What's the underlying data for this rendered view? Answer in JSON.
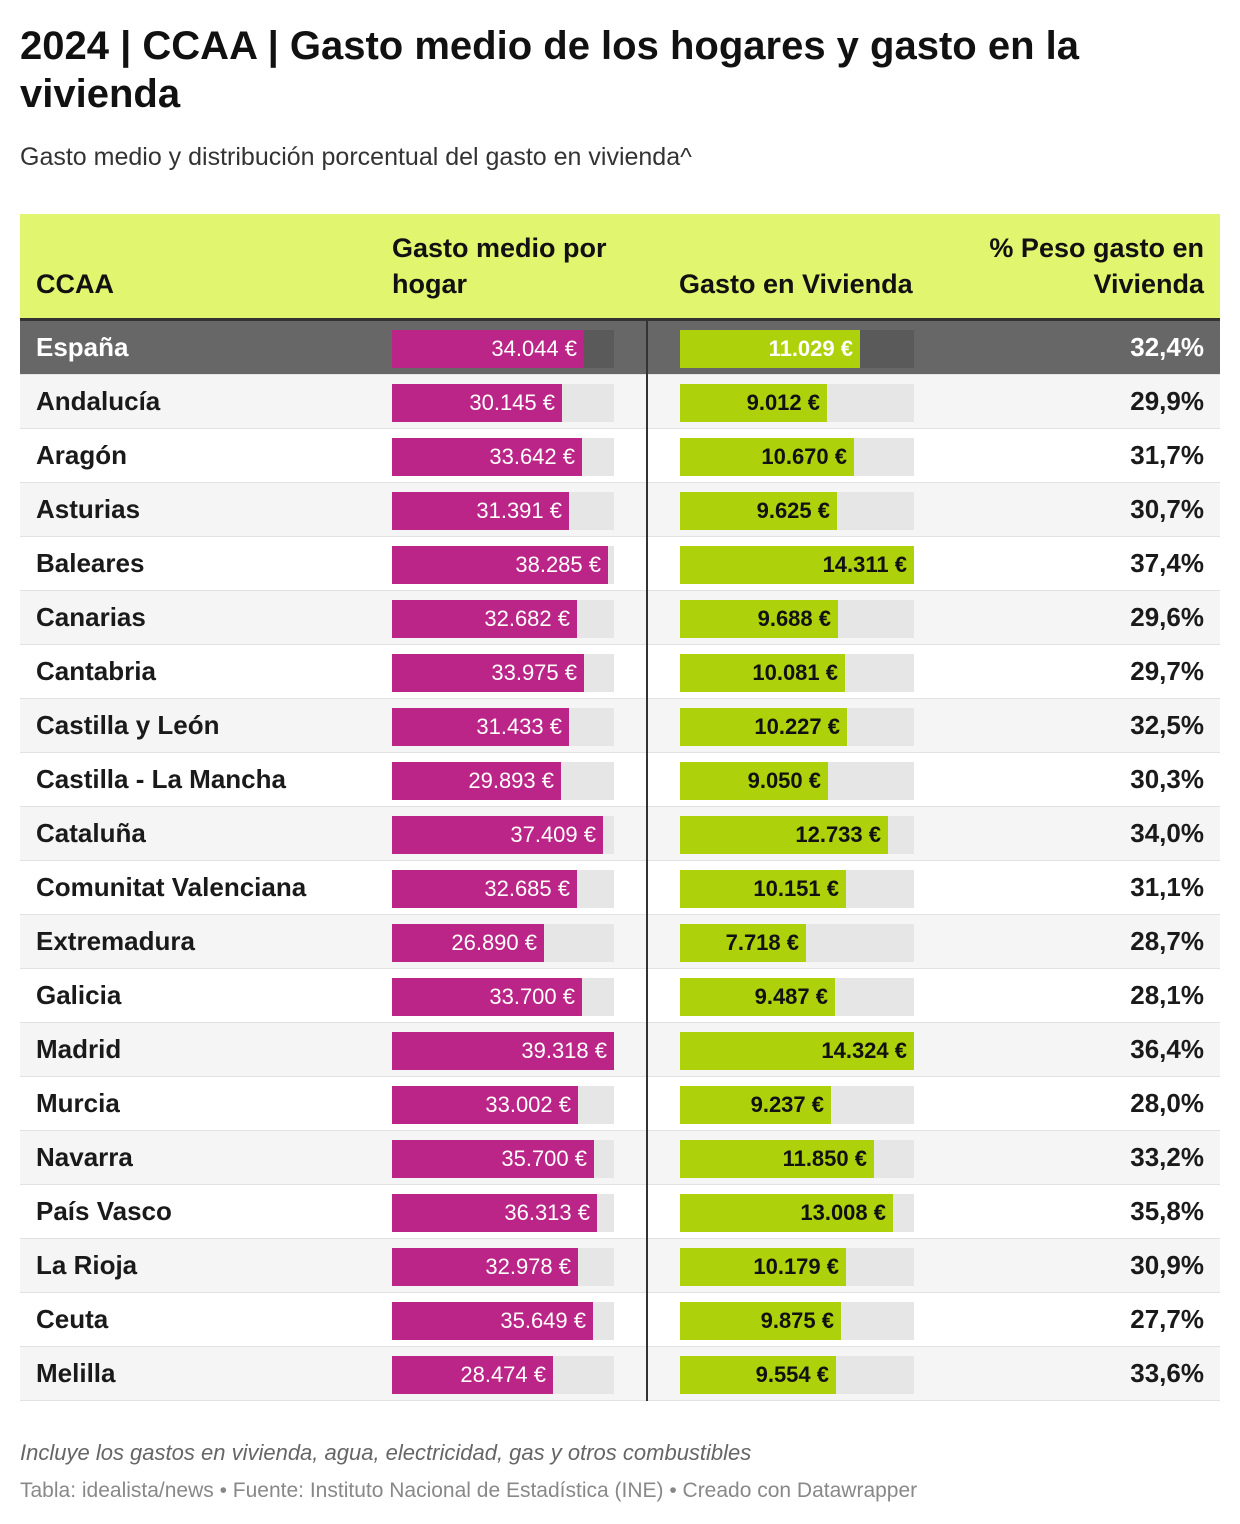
{
  "title": "2024 | CCAA | Gasto medio de los hogares y gasto en la vivienda",
  "subtitle": "Gasto medio y distribución porcentual del gasto en vivienda^",
  "footer": {
    "note": "Incluye los gastos en vivienda, agua, electricidad, gas y otros combustibles",
    "source": "Tabla: idealista/news • Fuente: Instituto Nacional de Estadística (INE) • Creado con Datawrapper"
  },
  "colors": {
    "header_bg": "#e1f56f",
    "gasto_bar": "#bb2587",
    "vivienda_bar": "#add10a",
    "highlight_row": "#676767"
  },
  "chart_data": {
    "type": "table",
    "columns": [
      "CCAA",
      "Gasto medio por hogar",
      "Gasto en Vivienda",
      "% Peso gasto en Vivienda"
    ],
    "gasto_max": 39318,
    "vivienda_max": 14324,
    "rows": [
      {
        "ccaa": "España",
        "gasto": 34044,
        "gasto_label": "34.044 €",
        "vivienda": 11029,
        "vivienda_label": "11.029 €",
        "peso": "32,4%",
        "highlight": true
      },
      {
        "ccaa": "Andalucía",
        "gasto": 30145,
        "gasto_label": "30.145 €",
        "vivienda": 9012,
        "vivienda_label": "9.012 €",
        "peso": "29,9%"
      },
      {
        "ccaa": "Aragón",
        "gasto": 33642,
        "gasto_label": "33.642 €",
        "vivienda": 10670,
        "vivienda_label": "10.670 €",
        "peso": "31,7%"
      },
      {
        "ccaa": "Asturias",
        "gasto": 31391,
        "gasto_label": "31.391 €",
        "vivienda": 9625,
        "vivienda_label": "9.625 €",
        "peso": "30,7%"
      },
      {
        "ccaa": "Baleares",
        "gasto": 38285,
        "gasto_label": "38.285 €",
        "vivienda": 14311,
        "vivienda_label": "14.311 €",
        "peso": "37,4%"
      },
      {
        "ccaa": "Canarias",
        "gasto": 32682,
        "gasto_label": "32.682 €",
        "vivienda": 9688,
        "vivienda_label": "9.688 €",
        "peso": "29,6%"
      },
      {
        "ccaa": "Cantabria",
        "gasto": 33975,
        "gasto_label": "33.975 €",
        "vivienda": 10081,
        "vivienda_label": "10.081 €",
        "peso": "29,7%"
      },
      {
        "ccaa": "Castilla y León",
        "gasto": 31433,
        "gasto_label": "31.433 €",
        "vivienda": 10227,
        "vivienda_label": "10.227 €",
        "peso": "32,5%"
      },
      {
        "ccaa": "Castilla - La Mancha",
        "gasto": 29893,
        "gasto_label": "29.893 €",
        "vivienda": 9050,
        "vivienda_label": "9.050 €",
        "peso": "30,3%"
      },
      {
        "ccaa": "Cataluña",
        "gasto": 37409,
        "gasto_label": "37.409 €",
        "vivienda": 12733,
        "vivienda_label": "12.733 €",
        "peso": "34,0%"
      },
      {
        "ccaa": "Comunitat Valenciana",
        "gasto": 32685,
        "gasto_label": "32.685 €",
        "vivienda": 10151,
        "vivienda_label": "10.151 €",
        "peso": "31,1%"
      },
      {
        "ccaa": "Extremadura",
        "gasto": 26890,
        "gasto_label": "26.890 €",
        "vivienda": 7718,
        "vivienda_label": "7.718 €",
        "peso": "28,7%"
      },
      {
        "ccaa": "Galicia",
        "gasto": 33700,
        "gasto_label": "33.700 €",
        "vivienda": 9487,
        "vivienda_label": "9.487 €",
        "peso": "28,1%"
      },
      {
        "ccaa": "Madrid",
        "gasto": 39318,
        "gasto_label": "39.318 €",
        "vivienda": 14324,
        "vivienda_label": "14.324 €",
        "peso": "36,4%"
      },
      {
        "ccaa": "Murcia",
        "gasto": 33002,
        "gasto_label": "33.002 €",
        "vivienda": 9237,
        "vivienda_label": "9.237 €",
        "peso": "28,0%"
      },
      {
        "ccaa": "Navarra",
        "gasto": 35700,
        "gasto_label": "35.700 €",
        "vivienda": 11850,
        "vivienda_label": "11.850 €",
        "peso": "33,2%"
      },
      {
        "ccaa": "País Vasco",
        "gasto": 36313,
        "gasto_label": "36.313 €",
        "vivienda": 13008,
        "vivienda_label": "13.008 €",
        "peso": "35,8%"
      },
      {
        "ccaa": "La Rioja",
        "gasto": 32978,
        "gasto_label": "32.978 €",
        "vivienda": 10179,
        "vivienda_label": "10.179 €",
        "peso": "30,9%"
      },
      {
        "ccaa": "Ceuta",
        "gasto": 35649,
        "gasto_label": "35.649 €",
        "vivienda": 9875,
        "vivienda_label": "9.875 €",
        "peso": "27,7%"
      },
      {
        "ccaa": "Melilla",
        "gasto": 28474,
        "gasto_label": "28.474 €",
        "vivienda": 9554,
        "vivienda_label": "9.554 €",
        "peso": "33,6%"
      }
    ]
  }
}
